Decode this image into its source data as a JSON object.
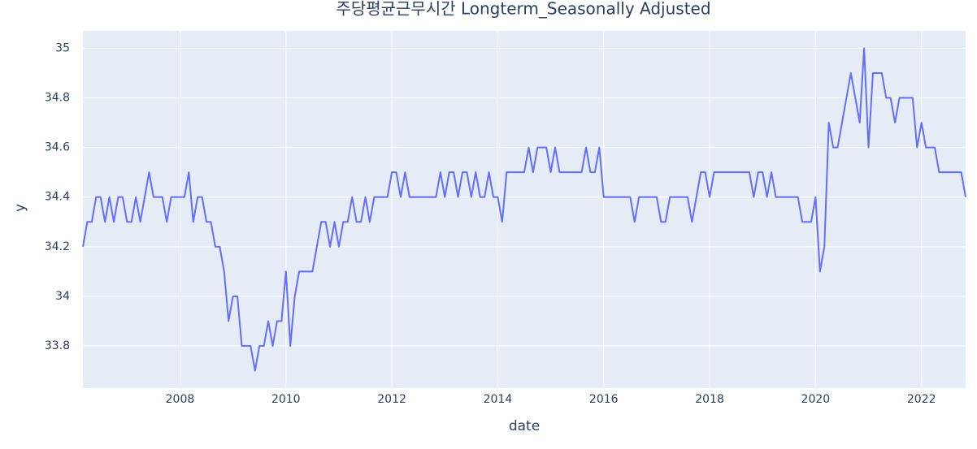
{
  "chart_data": {
    "type": "line",
    "title": "주당평균근무시간 Longterm_Seasonally Adjusted",
    "x_label": "date",
    "y_label": "y",
    "x": [
      "2006-03",
      "2006-04",
      "2006-05",
      "2006-06",
      "2006-07",
      "2006-08",
      "2006-09",
      "2006-10",
      "2006-11",
      "2006-12",
      "2007-01",
      "2007-02",
      "2007-03",
      "2007-04",
      "2007-05",
      "2007-06",
      "2007-07",
      "2007-08",
      "2007-09",
      "2007-10",
      "2007-11",
      "2007-12",
      "2008-01",
      "2008-02",
      "2008-03",
      "2008-04",
      "2008-05",
      "2008-06",
      "2008-07",
      "2008-08",
      "2008-09",
      "2008-10",
      "2008-11",
      "2008-12",
      "2009-01",
      "2009-02",
      "2009-03",
      "2009-04",
      "2009-05",
      "2009-06",
      "2009-07",
      "2009-08",
      "2009-09",
      "2009-10",
      "2009-11",
      "2009-12",
      "2010-01",
      "2010-02",
      "2010-03",
      "2010-04",
      "2010-05",
      "2010-06",
      "2010-07",
      "2010-08",
      "2010-09",
      "2010-10",
      "2010-11",
      "2010-12",
      "2011-01",
      "2011-02",
      "2011-03",
      "2011-04",
      "2011-05",
      "2011-06",
      "2011-07",
      "2011-08",
      "2011-09",
      "2011-10",
      "2011-11",
      "2011-12",
      "2012-01",
      "2012-02",
      "2012-03",
      "2012-04",
      "2012-05",
      "2012-06",
      "2012-07",
      "2012-08",
      "2012-09",
      "2012-10",
      "2012-11",
      "2012-12",
      "2013-01",
      "2013-02",
      "2013-03",
      "2013-04",
      "2013-05",
      "2013-06",
      "2013-07",
      "2013-08",
      "2013-09",
      "2013-10",
      "2013-11",
      "2013-12",
      "2014-01",
      "2014-02",
      "2014-03",
      "2014-04",
      "2014-05",
      "2014-06",
      "2014-07",
      "2014-08",
      "2014-09",
      "2014-10",
      "2014-11",
      "2014-12",
      "2015-01",
      "2015-02",
      "2015-03",
      "2015-04",
      "2015-05",
      "2015-06",
      "2015-07",
      "2015-08",
      "2015-09",
      "2015-10",
      "2015-11",
      "2015-12",
      "2016-01",
      "2016-02",
      "2016-03",
      "2016-04",
      "2016-05",
      "2016-06",
      "2016-07",
      "2016-08",
      "2016-09",
      "2016-10",
      "2016-11",
      "2016-12",
      "2017-01",
      "2017-02",
      "2017-03",
      "2017-04",
      "2017-05",
      "2017-06",
      "2017-07",
      "2017-08",
      "2017-09",
      "2017-10",
      "2017-11",
      "2017-12",
      "2018-01",
      "2018-02",
      "2018-03",
      "2018-04",
      "2018-05",
      "2018-06",
      "2018-07",
      "2018-08",
      "2018-09",
      "2018-10",
      "2018-11",
      "2018-12",
      "2019-01",
      "2019-02",
      "2019-03",
      "2019-04",
      "2019-05",
      "2019-06",
      "2019-07",
      "2019-08",
      "2019-09",
      "2019-10",
      "2019-11",
      "2019-12",
      "2020-01",
      "2020-02",
      "2020-03",
      "2020-04",
      "2020-05",
      "2020-06",
      "2020-07",
      "2020-08",
      "2020-09",
      "2020-10",
      "2020-11",
      "2020-12",
      "2021-01",
      "2021-02",
      "2021-03",
      "2021-04",
      "2021-05",
      "2021-06",
      "2021-07",
      "2021-08",
      "2021-09",
      "2021-10",
      "2021-11",
      "2021-12",
      "2022-01",
      "2022-02",
      "2022-03",
      "2022-04",
      "2022-05",
      "2022-06",
      "2022-07",
      "2022-08",
      "2022-09",
      "2022-10",
      "2022-11"
    ],
    "series": [
      {
        "color": "#636efa",
        "values": [
          34.2,
          34.3,
          34.3,
          34.4,
          34.4,
          34.3,
          34.4,
          34.3,
          34.4,
          34.4,
          34.3,
          34.3,
          34.4,
          34.3,
          34.4,
          34.5,
          34.4,
          34.4,
          34.4,
          34.3,
          34.4,
          34.4,
          34.4,
          34.4,
          34.5,
          34.3,
          34.4,
          34.4,
          34.3,
          34.3,
          34.2,
          34.2,
          34.1,
          33.9,
          34.0,
          34.0,
          33.8,
          33.8,
          33.8,
          33.7,
          33.8,
          33.8,
          33.9,
          33.8,
          33.9,
          33.9,
          34.1,
          33.8,
          34.0,
          34.1,
          34.1,
          34.1,
          34.1,
          34.2,
          34.3,
          34.3,
          34.2,
          34.3,
          34.2,
          34.3,
          34.3,
          34.4,
          34.3,
          34.3,
          34.4,
          34.3,
          34.4,
          34.4,
          34.4,
          34.4,
          34.5,
          34.5,
          34.4,
          34.5,
          34.4,
          34.4,
          34.4,
          34.4,
          34.4,
          34.4,
          34.4,
          34.5,
          34.4,
          34.5,
          34.5,
          34.4,
          34.5,
          34.5,
          34.4,
          34.5,
          34.4,
          34.4,
          34.5,
          34.4,
          34.4,
          34.3,
          34.5,
          34.5,
          34.5,
          34.5,
          34.5,
          34.6,
          34.5,
          34.6,
          34.6,
          34.6,
          34.5,
          34.6,
          34.5,
          34.5,
          34.5,
          34.5,
          34.5,
          34.5,
          34.6,
          34.5,
          34.5,
          34.6,
          34.4,
          34.4,
          34.4,
          34.4,
          34.4,
          34.4,
          34.4,
          34.3,
          34.4,
          34.4,
          34.4,
          34.4,
          34.4,
          34.3,
          34.3,
          34.4,
          34.4,
          34.4,
          34.4,
          34.4,
          34.3,
          34.4,
          34.5,
          34.5,
          34.4,
          34.5,
          34.5,
          34.5,
          34.5,
          34.5,
          34.5,
          34.5,
          34.5,
          34.5,
          34.4,
          34.5,
          34.5,
          34.4,
          34.5,
          34.4,
          34.4,
          34.4,
          34.4,
          34.4,
          34.4,
          34.3,
          34.3,
          34.3,
          34.4,
          34.1,
          34.2,
          34.7,
          34.6,
          34.6,
          34.7,
          34.8,
          34.9,
          34.8,
          34.7,
          35.0,
          34.6,
          34.9,
          34.9,
          34.9,
          34.8,
          34.8,
          34.7,
          34.8,
          34.8,
          34.8,
          34.8,
          34.6,
          34.7,
          34.6,
          34.6,
          34.6,
          34.5,
          34.5,
          34.5,
          34.5,
          34.5,
          34.5,
          34.4
        ]
      }
    ],
    "xlim": [
      "2006-03",
      "2022-11"
    ],
    "xticks": [
      {
        "value": "2008-01",
        "label": "2008"
      },
      {
        "value": "2010-01",
        "label": "2010"
      },
      {
        "value": "2012-01",
        "label": "2012"
      },
      {
        "value": "2014-01",
        "label": "2014"
      },
      {
        "value": "2016-01",
        "label": "2016"
      },
      {
        "value": "2018-01",
        "label": "2018"
      },
      {
        "value": "2020-01",
        "label": "2020"
      },
      {
        "value": "2022-01",
        "label": "2022"
      }
    ],
    "ylim": [
      33.63,
      35.07
    ],
    "yticks": [
      33.8,
      34,
      34.2,
      34.4,
      34.6,
      34.8,
      35
    ],
    "grid": true
  }
}
